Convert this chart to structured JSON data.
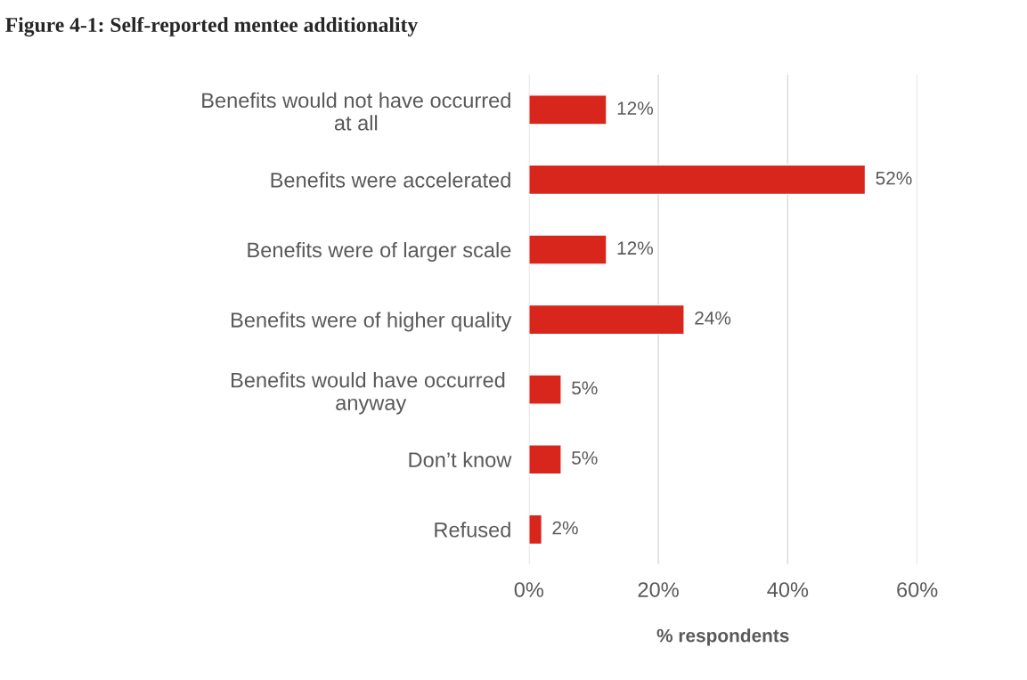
{
  "chart_data": {
    "type": "bar",
    "orientation": "horizontal",
    "title": "Figure 4-1: Self-reported mentee additionality",
    "xlabel": "% respondents",
    "categories": [
      "Benefits would not have occurred\nat all",
      "Benefits were accelerated",
      "Benefits were of larger scale",
      "Benefits were of higher quality",
      "Benefits would have occurred \nanyway",
      "Don’t know",
      "Refused"
    ],
    "values": [
      12,
      52,
      12,
      24,
      5,
      5,
      2
    ],
    "value_labels": [
      "12%",
      "52%",
      "12%",
      "24%",
      "5%",
      "5%",
      "2%"
    ],
    "color": "#d9261c",
    "xlim": [
      0,
      60
    ],
    "xticks": [
      {
        "value": 0,
        "label": "0%"
      },
      {
        "value": 20,
        "label": "20%"
      },
      {
        "value": 40,
        "label": "40%"
      },
      {
        "value": 60,
        "label": "60%"
      }
    ],
    "grid": "x"
  }
}
